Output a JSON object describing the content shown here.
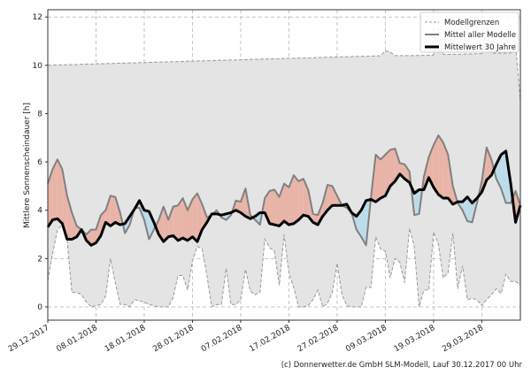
{
  "chart_data": {
    "type": "area",
    "ylabel": "Mittlere Sonnenscheindauer [h]",
    "xlabel": "",
    "ylim": [
      -0.55,
      12.3
    ],
    "xlim": [
      "2017-12-29",
      "2018-04-06"
    ],
    "yticks": [
      0,
      2,
      4,
      6,
      8,
      10,
      12
    ],
    "xticks": [
      "29.12.2017",
      "08.01.2018",
      "18.01.2018",
      "28.01.2018",
      "07.02.2018",
      "17.02.2018",
      "27.02.2018",
      "09.03.2018",
      "19.03.2018",
      "29.03.2018"
    ],
    "xtick_dates": [
      "2017-12-29",
      "2018-01-08",
      "2018-01-18",
      "2018-01-28",
      "2018-02-07",
      "2018-02-17",
      "2018-02-27",
      "2018-03-09",
      "2018-03-19",
      "2018-03-29"
    ],
    "grid": true,
    "legend_position": "top-right",
    "legend": [
      "Modellgrenzen",
      "Mittel aller Modelle",
      "Mittelwert 30 Jahre"
    ],
    "colors": {
      "band": "#e4e4e4",
      "above": "#e9b4a8",
      "below": "#bddcea",
      "model_mean": "#808080",
      "climate_mean": "#000000",
      "bounds": "#9a9a9a"
    },
    "x": [
      "2017-12-29",
      "2017-12-30",
      "2017-12-31",
      "2018-01-01",
      "2018-01-02",
      "2018-01-03",
      "2018-01-04",
      "2018-01-05",
      "2018-01-06",
      "2018-01-07",
      "2018-01-08",
      "2018-01-09",
      "2018-01-10",
      "2018-01-11",
      "2018-01-12",
      "2018-01-13",
      "2018-01-14",
      "2018-01-15",
      "2018-01-16",
      "2018-01-17",
      "2018-01-18",
      "2018-01-19",
      "2018-01-20",
      "2018-01-21",
      "2018-01-22",
      "2018-01-23",
      "2018-01-24",
      "2018-01-25",
      "2018-01-26",
      "2018-01-27",
      "2018-01-28",
      "2018-01-29",
      "2018-01-30",
      "2018-01-31",
      "2018-02-01",
      "2018-02-02",
      "2018-02-03",
      "2018-02-04",
      "2018-02-05",
      "2018-02-06",
      "2018-02-07",
      "2018-02-08",
      "2018-02-09",
      "2018-02-10",
      "2018-02-11",
      "2018-02-12",
      "2018-02-13",
      "2018-02-14",
      "2018-02-15",
      "2018-02-16",
      "2018-02-17",
      "2018-02-18",
      "2018-02-19",
      "2018-02-20",
      "2018-02-21",
      "2018-02-22",
      "2018-02-23",
      "2018-02-24",
      "2018-02-25",
      "2018-02-26",
      "2018-02-27",
      "2018-02-28",
      "2018-03-01",
      "2018-03-02",
      "2018-03-03",
      "2018-03-04",
      "2018-03-05",
      "2018-03-06",
      "2018-03-07",
      "2018-03-08",
      "2018-03-09",
      "2018-03-10",
      "2018-03-11",
      "2018-03-12",
      "2018-03-13",
      "2018-03-14",
      "2018-03-15",
      "2018-03-16",
      "2018-03-17",
      "2018-03-18",
      "2018-03-19",
      "2018-03-20",
      "2018-03-21",
      "2018-03-22",
      "2018-03-23",
      "2018-03-24",
      "2018-03-25",
      "2018-03-26",
      "2018-03-27",
      "2018-03-28",
      "2018-03-29",
      "2018-03-30",
      "2018-03-31",
      "2018-04-01",
      "2018-04-02",
      "2018-04-03",
      "2018-04-04",
      "2018-04-05",
      "2018-04-06"
    ],
    "series": [
      {
        "name": "Mittel aller Modelle",
        "values": [
          5.1,
          5.7,
          6.1,
          5.7,
          4.6,
          3.9,
          3.35,
          3.2,
          3.0,
          3.2,
          3.2,
          3.8,
          4.0,
          4.6,
          4.55,
          3.9,
          3.05,
          3.4,
          4.1,
          4.1,
          3.6,
          2.8,
          3.2,
          3.6,
          4.15,
          3.6,
          4.15,
          4.2,
          4.5,
          4.0,
          4.45,
          4.7,
          4.25,
          3.7,
          3.8,
          4.0,
          3.7,
          3.6,
          3.8,
          4.4,
          4.35,
          4.9,
          3.8,
          3.6,
          3.4,
          4.5,
          4.8,
          4.85,
          4.55,
          5.1,
          4.95,
          5.45,
          5.2,
          5.3,
          4.85,
          3.85,
          3.8,
          4.3,
          5.05,
          5.0,
          4.6,
          4.2,
          4.1,
          3.9,
          3.2,
          2.9,
          2.55,
          4.5,
          6.3,
          6.1,
          6.3,
          6.5,
          6.55,
          5.95,
          5.9,
          5.6,
          3.8,
          3.85,
          5.4,
          6.2,
          6.7,
          7.1,
          6.8,
          6.3,
          5.0,
          4.3,
          4.0,
          3.55,
          3.5,
          4.3,
          5.2,
          6.6,
          6.1,
          5.3,
          4.9,
          4.3,
          4.3,
          4.8,
          4.2
        ]
      },
      {
        "name": "Mittelwert 30 Jahre",
        "values": [
          3.3,
          3.6,
          3.65,
          3.45,
          2.8,
          2.8,
          2.9,
          3.2,
          2.75,
          2.55,
          2.65,
          2.95,
          3.5,
          3.35,
          3.5,
          3.4,
          3.45,
          3.75,
          4.05,
          4.4,
          4.0,
          3.95,
          3.5,
          3.0,
          2.7,
          2.9,
          2.95,
          2.75,
          2.85,
          2.75,
          2.9,
          2.7,
          3.2,
          3.5,
          3.85,
          3.85,
          3.8,
          3.85,
          3.9,
          4.0,
          3.9,
          3.75,
          3.65,
          3.75,
          3.9,
          3.9,
          3.45,
          3.4,
          3.35,
          3.55,
          3.4,
          3.45,
          3.6,
          3.8,
          3.75,
          3.5,
          3.4,
          3.75,
          4.0,
          4.2,
          4.2,
          4.2,
          4.25,
          3.9,
          3.75,
          4.0,
          4.4,
          4.45,
          4.35,
          4.5,
          4.6,
          5.0,
          5.2,
          5.5,
          5.3,
          5.15,
          4.7,
          4.85,
          4.85,
          5.35,
          4.95,
          4.65,
          4.5,
          4.5,
          4.25,
          4.35,
          4.35,
          4.55,
          4.3,
          4.5,
          4.75,
          5.25,
          5.45,
          5.9,
          6.3,
          6.45,
          5.1,
          3.5,
          4.2
        ]
      },
      {
        "name": "Modellgrenzen (oben)",
        "values": [
          10.0,
          10.01,
          10.01,
          10.02,
          10.02,
          10.03,
          10.03,
          10.04,
          10.05,
          10.05,
          10.06,
          10.06,
          10.07,
          10.07,
          10.08,
          10.09,
          10.09,
          10.1,
          10.1,
          10.11,
          10.11,
          10.12,
          10.13,
          10.13,
          10.14,
          10.14,
          10.15,
          10.15,
          10.16,
          10.17,
          10.17,
          10.18,
          10.18,
          10.19,
          10.19,
          10.2,
          10.21,
          10.21,
          10.22,
          10.22,
          10.23,
          10.23,
          10.24,
          10.25,
          10.25,
          10.26,
          10.26,
          10.27,
          10.27,
          10.28,
          10.29,
          10.29,
          10.3,
          10.3,
          10.31,
          10.31,
          10.32,
          10.33,
          10.33,
          10.34,
          10.34,
          10.35,
          10.35,
          10.36,
          10.37,
          10.37,
          10.38,
          10.38,
          10.39,
          10.39,
          10.6,
          10.55,
          10.4,
          10.4,
          10.4,
          10.4,
          10.4,
          10.41,
          10.41,
          10.42,
          10.42,
          11.5,
          10.45,
          10.45,
          10.45,
          10.46,
          10.46,
          10.47,
          10.47,
          10.48,
          10.48,
          11.6,
          10.5,
          10.5,
          10.5,
          10.5,
          10.5,
          10.9,
          8.5
        ]
      },
      {
        "name": "Modellgrenzen (unten)",
        "values": [
          1.1,
          2.2,
          3.2,
          3.4,
          2.8,
          0.6,
          0.6,
          0.5,
          0.2,
          0.0,
          0.05,
          0.1,
          0.45,
          2.0,
          1.0,
          0.1,
          0.1,
          0.0,
          0.3,
          0.25,
          0.2,
          0.1,
          0.05,
          0.0,
          0.0,
          0.0,
          0.4,
          1.3,
          1.3,
          0.7,
          1.9,
          2.5,
          2.4,
          1.3,
          0.0,
          0.1,
          0.1,
          1.6,
          0.1,
          0.1,
          0.3,
          1.55,
          0.65,
          0.5,
          0.6,
          2.8,
          2.45,
          2.3,
          0.9,
          3.0,
          1.4,
          0.8,
          0.0,
          0.0,
          0.05,
          0.3,
          0.7,
          0.0,
          0.15,
          0.6,
          1.8,
          0.5,
          0.05,
          0.0,
          0.0,
          0.0,
          0.8,
          0.8,
          2.9,
          2.4,
          2.3,
          1.2,
          2.0,
          1.85,
          1.0,
          3.25,
          2.5,
          0.0,
          0.7,
          0.7,
          3.1,
          2.6,
          1.2,
          1.4,
          3.05,
          0.75,
          1.7,
          0.3,
          0.35,
          0.3,
          0.05,
          0.3,
          0.5,
          0.75,
          0.55,
          1.35,
          1.05,
          1.05,
          0.9
        ]
      }
    ]
  },
  "footer": "(c) Donnerwetter.de GmbH SLM-Modell, Lauf 30.12.2017 00 Uhr"
}
